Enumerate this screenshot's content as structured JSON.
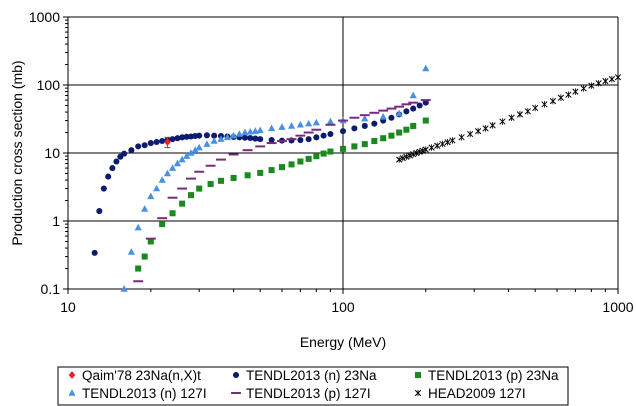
{
  "chart_data": {
    "type": "scatter",
    "title": "",
    "xlabel": "Energy (MeV)",
    "ylabel": "Production cross section (mb)",
    "x_scale": "log",
    "y_scale": "log",
    "xlim": [
      10,
      1000
    ],
    "ylim": [
      0.1,
      1000
    ],
    "x_ticks": [
      10,
      100,
      1000
    ],
    "x_tick_labels": [
      "10",
      "100",
      "1000"
    ],
    "y_ticks": [
      0.1,
      1,
      10,
      100,
      1000
    ],
    "y_tick_labels": [
      "0.1",
      "1",
      "10",
      "100",
      "1000"
    ],
    "grid": true,
    "legend_position": "bottom",
    "series": [
      {
        "name": "Qaim'78 23Na(n,X)t",
        "color": "#e8212a",
        "marker": "diamond",
        "x": [
          23
        ],
        "y": [
          14.5
        ],
        "y_err": [
          2.5
        ]
      },
      {
        "name": "TENDL2013 (n) 23Na",
        "color": "#0d1a6e",
        "marker": "circle",
        "x": [
          12.5,
          13,
          13.5,
          14,
          14.5,
          15,
          15.5,
          16,
          17,
          18,
          19,
          20,
          21,
          22,
          23,
          24,
          25,
          26,
          27,
          28,
          29,
          30,
          32,
          34,
          36,
          38,
          40,
          42,
          44,
          46,
          48,
          50,
          55,
          60,
          65,
          70,
          75,
          80,
          85,
          90,
          100,
          110,
          120,
          130,
          140,
          150,
          160,
          170,
          180,
          190,
          200
        ],
        "y": [
          0.34,
          1.4,
          3.0,
          4.5,
          6.0,
          7.5,
          8.8,
          9.8,
          11.0,
          12.5,
          13.0,
          14.0,
          14.5,
          15.0,
          15.5,
          16.0,
          16.5,
          17.0,
          17.3,
          17.5,
          17.8,
          18.0,
          18.2,
          18.0,
          17.8,
          17.5,
          17.2,
          17.0,
          16.8,
          16.6,
          16.3,
          16.0,
          15.5,
          15.2,
          15.3,
          15.5,
          16.0,
          17.0,
          18.0,
          19.0,
          21.0,
          23.0,
          25.0,
          27.0,
          30.0,
          33.0,
          37.0,
          41.0,
          45.0,
          50.0,
          55.0
        ]
      },
      {
        "name": "TENDL2013 (p) 23Na",
        "color": "#1a8a1f",
        "marker": "square",
        "x": [
          18,
          19,
          20,
          22,
          24,
          26,
          28,
          30,
          33,
          36,
          40,
          45,
          50,
          55,
          60,
          65,
          70,
          75,
          80,
          85,
          90,
          100,
          110,
          120,
          130,
          140,
          150,
          160,
          170,
          180,
          200
        ],
        "y": [
          0.2,
          0.3,
          0.5,
          0.9,
          1.3,
          1.8,
          2.4,
          3.0,
          3.5,
          3.9,
          4.3,
          4.7,
          5.1,
          5.6,
          6.2,
          6.8,
          7.5,
          8.2,
          9.0,
          9.8,
          10.5,
          11.5,
          12.5,
          13.5,
          15.0,
          16.5,
          18.0,
          20.0,
          22.0,
          25.0,
          30.0
        ]
      },
      {
        "name": "TENDL2013 (n) 127I",
        "color": "#4a90e2",
        "marker": "triangle",
        "x": [
          16,
          17,
          18,
          19,
          20,
          21,
          22,
          23,
          24,
          25,
          26,
          27,
          28,
          29,
          30,
          32,
          34,
          36,
          38,
          40,
          42,
          44,
          46,
          48,
          50,
          55,
          60,
          65,
          70,
          75,
          80,
          90,
          100,
          120,
          140,
          160,
          180,
          200
        ],
        "y": [
          0.1,
          0.35,
          0.8,
          1.5,
          2.3,
          3.0,
          4.0,
          5.0,
          6.0,
          7.0,
          8.0,
          9.0,
          10.0,
          11.0,
          12.0,
          13.5,
          15.0,
          16.0,
          17.0,
          18.0,
          19.0,
          20.0,
          20.5,
          21.0,
          21.5,
          23.0,
          24.0,
          25.0,
          26.0,
          27.0,
          28.0,
          29.0,
          30.0,
          32.0,
          34.0,
          38.0,
          70.0,
          175.0
        ]
      },
      {
        "name": "TENDL2013 (p) 127I",
        "color": "#7a2a7e",
        "marker": "dash",
        "x": [
          18,
          20,
          22,
          24,
          26,
          28,
          30,
          33,
          36,
          40,
          45,
          50,
          55,
          60,
          65,
          70,
          75,
          80,
          90,
          100,
          110,
          120,
          130,
          140,
          150,
          160,
          170,
          180,
          200
        ],
        "y": [
          0.13,
          0.55,
          1.1,
          2.2,
          3.0,
          4.2,
          5.3,
          6.5,
          8.0,
          9.5,
          11.0,
          12.5,
          14.0,
          15.0,
          16.0,
          18.0,
          20.0,
          22.0,
          26.0,
          30.0,
          33.0,
          36.0,
          39.0,
          42.0,
          45.0,
          48.0,
          52.0,
          55.0,
          60.0
        ]
      },
      {
        "name": "HEAD2009 127I",
        "color": "#000000",
        "marker": "cross",
        "x": [
          160,
          165,
          170,
          175,
          180,
          185,
          190,
          195,
          200,
          210,
          220,
          230,
          240,
          250,
          270,
          290,
          310,
          330,
          350,
          380,
          410,
          440,
          470,
          500,
          540,
          580,
          620,
          660,
          700,
          750,
          800,
          850,
          900,
          950,
          1000
        ],
        "y": [
          8.0,
          8.4,
          8.8,
          9.2,
          9.6,
          10.0,
          10.4,
          10.8,
          11.2,
          12.0,
          12.8,
          13.6,
          14.4,
          15.3,
          17.0,
          19.0,
          21.0,
          23.0,
          25.5,
          29.0,
          33.0,
          37.0,
          41.0,
          46.0,
          52.0,
          58.0,
          65.0,
          72.0,
          80.0,
          89.0,
          98.0,
          106.0,
          114.0,
          122.0,
          130.0
        ]
      }
    ]
  }
}
